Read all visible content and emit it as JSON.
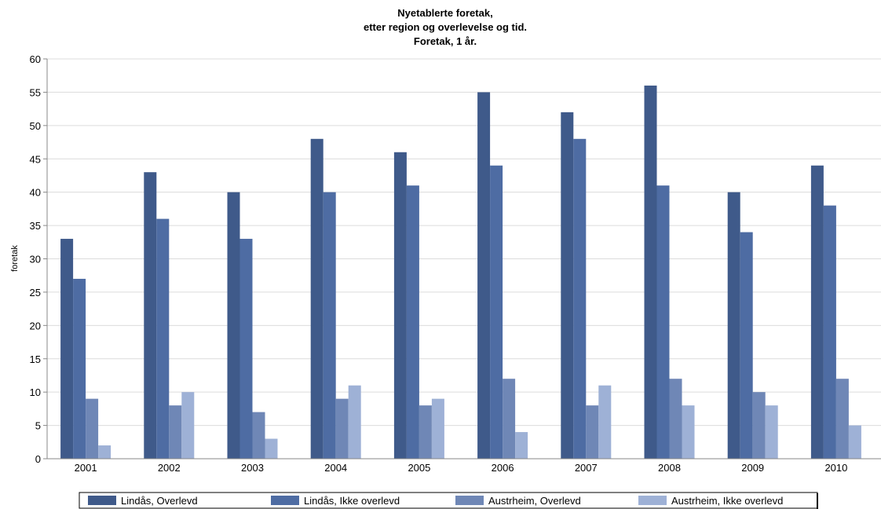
{
  "chart_data": {
    "type": "bar",
    "title": [
      "Nyetablerte foretak,",
      "etter region og overlevelse og tid.",
      "Foretak, 1 år."
    ],
    "ylabel": "foretak",
    "xlabel": "",
    "ylim": [
      0,
      60
    ],
    "yticks": [
      0,
      5,
      10,
      15,
      20,
      25,
      30,
      35,
      40,
      45,
      50,
      55,
      60
    ],
    "grid": true,
    "legend_position": "bottom",
    "categories": [
      "2001",
      "2002",
      "2003",
      "2004",
      "2005",
      "2006",
      "2007",
      "2008",
      "2009",
      "2010"
    ],
    "series": [
      {
        "name": "Lindås, Overlevd",
        "color": "#3f5a8a",
        "values": [
          33,
          43,
          40,
          48,
          46,
          55,
          52,
          56,
          40,
          44
        ]
      },
      {
        "name": "Lindås, Ikke overlevd",
        "color": "#4e6ca3",
        "values": [
          27,
          36,
          33,
          40,
          41,
          44,
          48,
          41,
          34,
          38
        ]
      },
      {
        "name": "Austrheim, Overlevd",
        "color": "#6f87b6",
        "values": [
          9,
          8,
          7,
          9,
          8,
          12,
          8,
          12,
          10,
          12
        ]
      },
      {
        "name": "Austrheim, Ikke overlevd",
        "color": "#9eb1d6",
        "values": [
          2,
          10,
          3,
          11,
          9,
          4,
          11,
          8,
          8,
          5
        ]
      }
    ]
  }
}
